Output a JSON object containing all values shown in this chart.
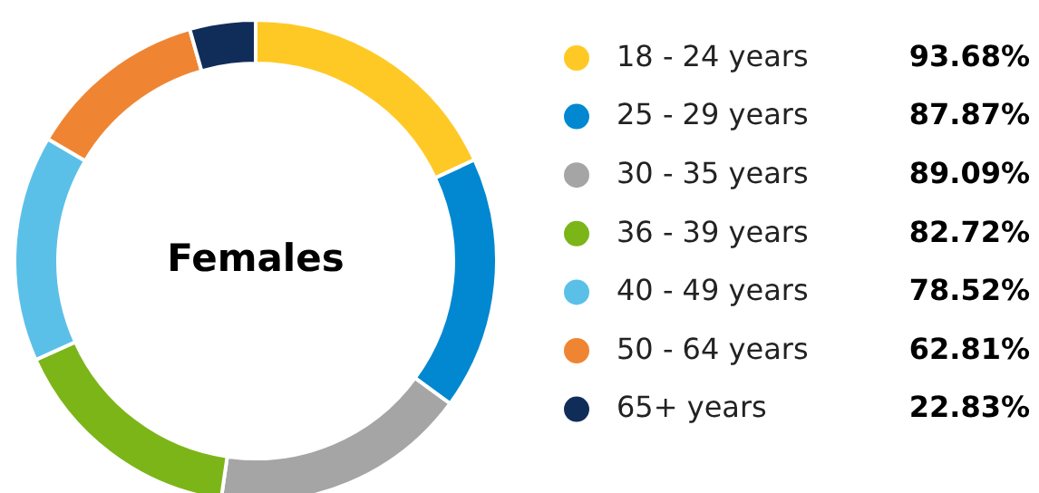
{
  "chart_data": {
    "type": "donut",
    "title": "Females",
    "categories": [
      "18 - 24 years",
      "25 - 29 years",
      "30 - 35 years",
      "36 - 39 years",
      "40 - 49 years",
      "50 - 64 years",
      "65+ years"
    ],
    "values": [
      93.68,
      87.87,
      89.09,
      82.72,
      78.52,
      62.81,
      22.83
    ],
    "value_labels": [
      "93.68%",
      "87.87%",
      "89.09%",
      "82.72%",
      "78.52%",
      "62.81%",
      "22.83%"
    ],
    "colors": [
      "#ffc925",
      "#0288d1",
      "#a5a5a5",
      "#7cb518",
      "#5bc0e8",
      "#ef8533",
      "#102d5a"
    ],
    "legend": "right"
  }
}
